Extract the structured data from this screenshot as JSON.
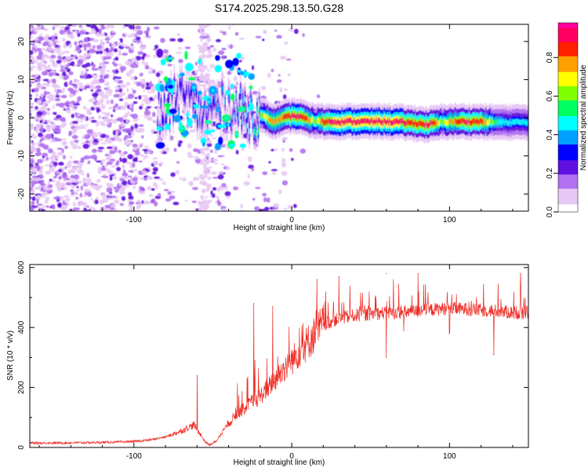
{
  "figure": {
    "title": "S174.2025.298.13.50.G28"
  },
  "chart_data": [
    {
      "type": "heatmap",
      "title": "S174.2025.298.13.50.G28",
      "xlabel": "Height of straight line (km)",
      "ylabel": "Frequency (Hz)",
      "xlim": [
        -166,
        150
      ],
      "ylim": [
        -24.5,
        24.5
      ],
      "xticks": [
        {
          "value": -100,
          "label": "-100"
        },
        {
          "value": 0,
          "label": "0"
        },
        {
          "value": 100,
          "label": "100"
        }
      ],
      "yticks": [
        {
          "value": 20,
          "label": "20"
        },
        {
          "value": 10,
          "label": "10"
        },
        {
          "value": 0,
          "label": "0"
        },
        {
          "value": -10,
          "label": "-10"
        },
        {
          "value": -20,
          "label": "-20"
        }
      ],
      "colorbar": {
        "label": "Normalized spectral amplitude",
        "range": [
          0,
          0.98
        ],
        "ticks": [
          {
            "value": 0.0,
            "label": "0.0"
          },
          {
            "value": 0.2,
            "label": "0.2"
          },
          {
            "value": 0.4,
            "label": "0.4"
          },
          {
            "value": 0.6,
            "label": "0.6"
          },
          {
            "value": 0.8,
            "label": "0.8"
          }
        ],
        "colors": [
          "#ffffff",
          "#e8c8f4",
          "#b070f0",
          "#6010e0",
          "#0000ff",
          "#00a0ff",
          "#00ffff",
          "#00ff60",
          "#80ff00",
          "#ffff00",
          "#ffa000",
          "#ff2000",
          "#ff0060",
          "#ff00a0"
        ]
      },
      "ridge": {
        "x": [
          -80,
          -72,
          -64,
          -56,
          -48,
          -40,
          -32,
          -24,
          -16,
          -12,
          -8,
          -4,
          0,
          5,
          10,
          15,
          20,
          30,
          40,
          50,
          60,
          70,
          80,
          85,
          90,
          95,
          100,
          110,
          120,
          130,
          140,
          150
        ],
        "frequency": [
          1,
          6,
          4,
          1,
          3,
          3,
          2,
          1,
          0,
          -1,
          -0.5,
          0,
          0.5,
          0.3,
          -0.5,
          -0.8,
          -1,
          -1,
          -1,
          -1,
          -1,
          -1.2,
          -1.5,
          -1.8,
          -1.5,
          -1.2,
          -1,
          -1,
          -1,
          -1.2,
          -1.2,
          -1.2
        ],
        "amplitude": [
          0.3,
          0.35,
          0.3,
          0.32,
          0.35,
          0.35,
          0.4,
          0.5,
          0.7,
          0.8,
          0.75,
          0.85,
          0.9,
          0.9,
          0.8,
          0.6,
          0.85,
          0.95,
          0.95,
          0.95,
          0.95,
          0.9,
          0.85,
          0.9,
          0.88,
          0.6,
          0.75,
          0.9,
          0.85,
          0.5,
          0.45,
          0.45
        ]
      }
    },
    {
      "type": "line",
      "xlabel": "Height of straight line (km)",
      "ylabel": "SNR (10 * v/v)",
      "xlim": [
        -166,
        150
      ],
      "ylim": [
        0,
        610
      ],
      "xticks": [
        {
          "value": -100,
          "label": "-100"
        },
        {
          "value": 0,
          "label": "0"
        },
        {
          "value": 100,
          "label": "100"
        }
      ],
      "yticks": [
        {
          "value": 0,
          "label": "0"
        },
        {
          "value": 200,
          "label": "200"
        },
        {
          "value": 400,
          "label": "400"
        },
        {
          "value": 600,
          "label": "600"
        }
      ],
      "series": [
        {
          "name": "SNR",
          "color": "#ee2a22",
          "x": [
            -166,
            -150,
            -130,
            -110,
            -100,
            -90,
            -80,
            -70,
            -62,
            -58,
            -55,
            -52,
            -48,
            -45,
            -40,
            -35,
            -30,
            -25,
            -20,
            -15,
            -10,
            -5,
            0,
            5,
            10,
            15,
            20,
            25,
            30,
            40,
            50,
            60,
            70,
            80,
            90,
            100,
            110,
            120,
            130,
            140,
            150
          ],
          "y": [
            15,
            15,
            16,
            18,
            20,
            25,
            35,
            55,
            75,
            45,
            20,
            8,
            20,
            45,
            80,
            110,
            130,
            150,
            170,
            200,
            230,
            260,
            290,
            320,
            350,
            380,
            410,
            420,
            430,
            440,
            445,
            450,
            450,
            455,
            460,
            465,
            460,
            458,
            455,
            450,
            448
          ],
          "spikes": [
            {
              "x": -60,
              "y": 240
            },
            {
              "x": -24,
              "y": 480
            },
            {
              "x": -12,
              "y": 470
            },
            {
              "x": 16,
              "y": 560
            },
            {
              "x": 30,
              "y": 570
            },
            {
              "x": 60,
              "y": 580
            },
            {
              "x": 80,
              "y": 580
            },
            {
              "x": 100,
              "y": 610
            },
            {
              "x": 145,
              "y": 580
            }
          ],
          "dips": [
            {
              "x": 60,
              "y": 300
            },
            {
              "x": 71,
              "y": 390
            },
            {
              "x": 100,
              "y": 380
            },
            {
              "x": 128,
              "y": 310
            }
          ]
        }
      ]
    }
  ]
}
